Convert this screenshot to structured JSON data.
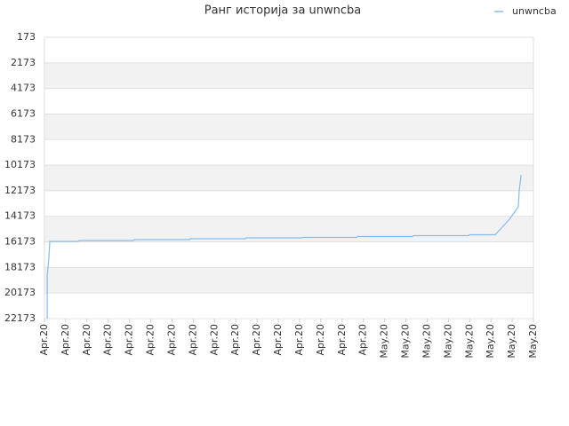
{
  "chart_data": {
    "type": "line",
    "title": "Ранг историја за unwncba",
    "series": [
      {
        "name": "unwncba",
        "color": "#88bbee",
        "x": [
          0.13,
          0.13,
          0.21,
          0.25,
          1.59,
          1.63,
          4.18,
          4.22,
          6.82,
          6.86,
          9.45,
          9.49,
          12.09,
          12.13,
          14.68,
          14.72,
          17.31,
          17.36,
          19.95,
          19.99,
          21.2,
          21.53,
          21.87,
          22.17,
          22.29,
          22.33,
          22.42
        ],
        "values": [
          22173,
          18773,
          17385,
          16135,
          16135,
          16066,
          16066,
          15996,
          15996,
          15927,
          15927,
          15857,
          15857,
          15822,
          15822,
          15753,
          15753,
          15684,
          15684,
          15614,
          15614,
          15025,
          14400,
          13706,
          13429,
          12180,
          10930
        ]
      }
    ],
    "ylim": [
      22173,
      173
    ],
    "yticks": [
      173,
      2173,
      4173,
      6173,
      8173,
      10173,
      12173,
      14173,
      16173,
      18173,
      20173,
      22173
    ],
    "xlim": [
      0,
      23
    ],
    "xticks": [
      {
        "value": 0,
        "label": "Apr.20"
      },
      {
        "value": 1,
        "label": "Apr.20"
      },
      {
        "value": 2,
        "label": "Apr.20"
      },
      {
        "value": 3,
        "label": "Apr.20"
      },
      {
        "value": 4,
        "label": "Apr.20"
      },
      {
        "value": 5,
        "label": "Apr.20"
      },
      {
        "value": 6,
        "label": "Apr.20"
      },
      {
        "value": 7,
        "label": "Apr.20"
      },
      {
        "value": 8,
        "label": "Apr.20"
      },
      {
        "value": 9,
        "label": "Apr.20"
      },
      {
        "value": 10,
        "label": "Apr.20"
      },
      {
        "value": 11,
        "label": "Apr.20"
      },
      {
        "value": 12,
        "label": "Apr.20"
      },
      {
        "value": 13,
        "label": "Apr.20"
      },
      {
        "value": 14,
        "label": "Apr.20"
      },
      {
        "value": 15,
        "label": "Apr.20"
      },
      {
        "value": 16,
        "label": "May.20"
      },
      {
        "value": 17,
        "label": "May.20"
      },
      {
        "value": 18,
        "label": "May.20"
      },
      {
        "value": 19,
        "label": "May.20"
      },
      {
        "value": 20,
        "label": "May.20"
      },
      {
        "value": 21,
        "label": "May.20"
      },
      {
        "value": 22,
        "label": "May.20"
      },
      {
        "value": 23,
        "label": "May.20"
      }
    ],
    "grid": true,
    "legend": "top-right"
  }
}
